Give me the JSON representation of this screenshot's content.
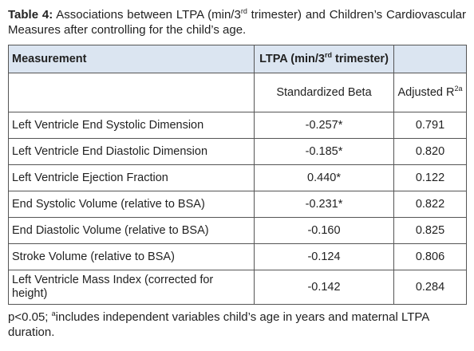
{
  "caption": {
    "label": "Table 4:",
    "text_before": "Associations between LTPA (min/3",
    "sup": "rd",
    "text_after": " trimester) and Children’s Cardiovascular Measures after controlling for the child’s age."
  },
  "table": {
    "header": {
      "measurement": "Measurement",
      "ltpa_before": "LTPA (min/3",
      "ltpa_sup": "rd",
      "ltpa_after": " trimester)",
      "beta": "Standardized Beta",
      "r2": "Adjusted R",
      "r2_sup": "2a"
    },
    "rows": [
      [
        "Left Ventricle End Systolic Dimension",
        "-0.257*",
        "0.791"
      ],
      [
        "Left Ventricle End Diastolic Dimension",
        "-0.185*",
        "0.820"
      ],
      [
        "Left Ventricle Ejection Fraction",
        "0.440*",
        "0.122"
      ],
      [
        "End Systolic Volume (relative to BSA)",
        "-0.231*",
        "0.822"
      ],
      [
        "End Diastolic Volume (relative to BSA)",
        "-0.160",
        "0.825"
      ],
      [
        "Stroke Volume (relative to BSA)",
        "-0.124",
        "0.806"
      ],
      [
        "Left Ventricle Mass Index (corrected for height)",
        "-0.142",
        "0.284"
      ]
    ]
  },
  "footnote": {
    "before": "p<0.05; ",
    "sup": "a",
    "after": "includes independent variables child’s age in years and maternal LTPA duration."
  }
}
